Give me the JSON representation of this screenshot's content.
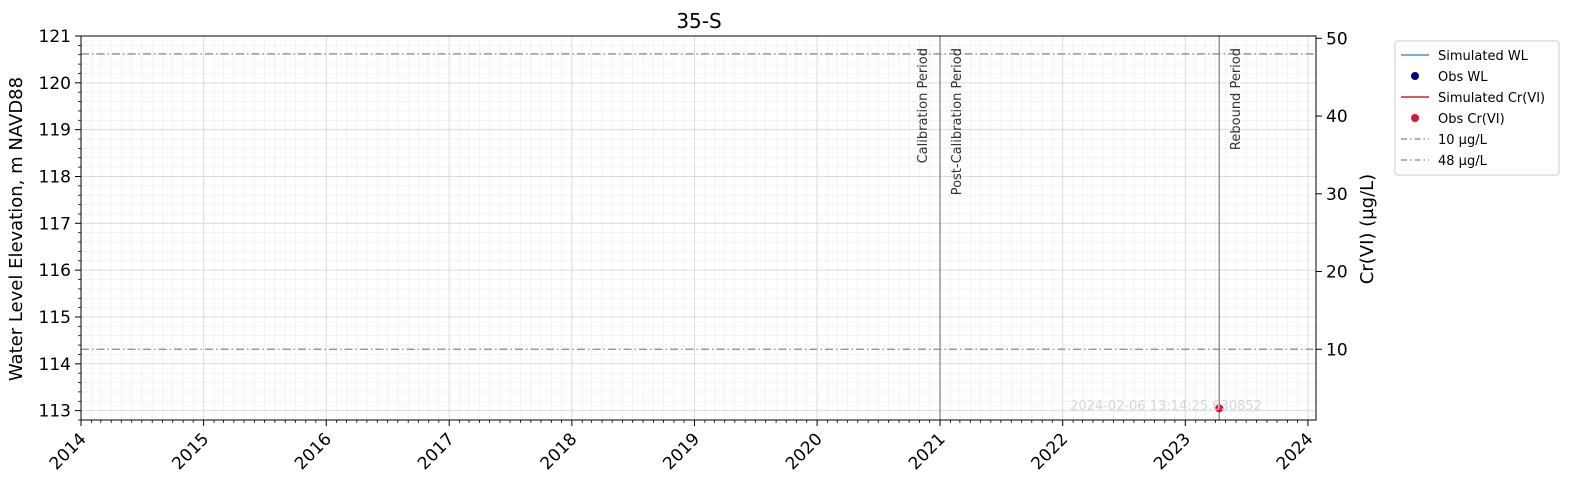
{
  "chart_data": {
    "type": "line",
    "title": "35-S",
    "xlabel": "",
    "ylabel": "Water Level Elevation, m NAVD88",
    "y2label": "Cr(VI) (µg/L)",
    "xlim": [
      "2014-01-01",
      "2024-01-25"
    ],
    "ylim": [
      112.8,
      121.0
    ],
    "y2lim": [
      0.9,
      50.3
    ],
    "x_ticks": [
      "2014",
      "2015",
      "2016",
      "2017",
      "2018",
      "2019",
      "2020",
      "2021",
      "2022",
      "2023",
      "2024"
    ],
    "y_ticks": [
      "113",
      "114",
      "115",
      "116",
      "117",
      "118",
      "119",
      "120",
      "121"
    ],
    "y2_ticks": [
      "10",
      "20",
      "30",
      "40",
      "50"
    ],
    "grid": true,
    "legend_position": "outside-right-top",
    "legend": [
      {
        "label": "Simulated WL",
        "kind": "line",
        "color": "#4a90e2"
      },
      {
        "label": "Obs WL",
        "kind": "marker",
        "color": "#000080"
      },
      {
        "label": "Simulated Cr(VI)",
        "kind": "line",
        "color": "#c0282d"
      },
      {
        "label": "Obs Cr(VI)",
        "kind": "marker",
        "color": "#dc143c"
      },
      {
        "label": "10 µg/L",
        "kind": "dashdot",
        "color": "#888888"
      },
      {
        "label": "48 µg/L",
        "kind": "dashdot",
        "color": "#888888"
      }
    ],
    "series": [
      {
        "name": "Simulated WL",
        "axis": "left",
        "values": []
      },
      {
        "name": "Obs WL",
        "axis": "left",
        "values": []
      },
      {
        "name": "Simulated Cr(VI)",
        "axis": "right",
        "values": []
      },
      {
        "name": "Obs Cr(VI)",
        "axis": "right",
        "values": [
          {
            "x": "2023-04-12",
            "y": 2.4
          }
        ]
      }
    ],
    "thresholds": [
      {
        "label": "10 µg/L",
        "axis": "right",
        "y": 10
      },
      {
        "label": "48 µg/L",
        "axis": "right",
        "y": 48
      }
    ],
    "period_lines": [
      {
        "x": "2021-01-01",
        "left_label": "Calibration Period",
        "right_label": "Post-Calibration Period"
      },
      {
        "x": "2023-04-12",
        "left_label": "",
        "right_label": "Rebound Period"
      }
    ],
    "watermark": "2024-02-06 13:14:25.630852",
    "colors": {
      "threshold": "#888888",
      "period_line": "#888888",
      "obs_cr": "#dc143c"
    }
  }
}
